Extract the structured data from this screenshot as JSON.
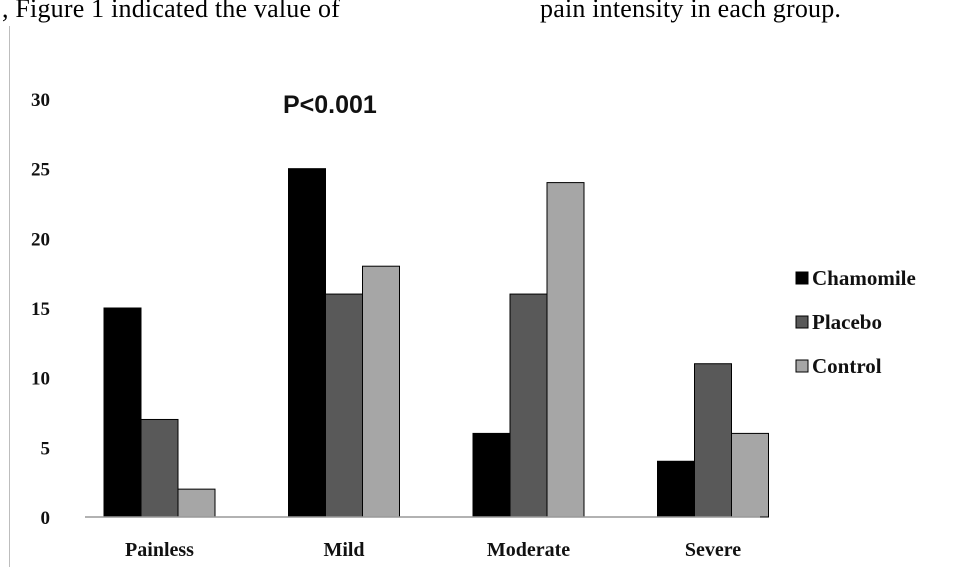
{
  "page_text": {
    "left": ", Figure 1 indicated the value of",
    "right": "pain intensity in each group."
  },
  "chart_data": {
    "type": "bar",
    "categories": [
      "Painless",
      "Mild",
      "Moderate",
      "Severe"
    ],
    "series": [
      {
        "name": "Chamomile",
        "values": [
          15,
          25,
          6,
          4
        ],
        "color": "#000000"
      },
      {
        "name": "Placebo",
        "values": [
          7,
          16,
          16,
          11
        ],
        "color": "#595959"
      },
      {
        "name": "Control",
        "values": [
          2,
          18,
          24,
          6
        ],
        "color": "#a6a6a6"
      }
    ],
    "yticks": [
      "0",
      "5",
      "10",
      "15",
      "20",
      "25",
      "30"
    ],
    "ylim": [
      0,
      30
    ],
    "annotation": "P<0.001",
    "legend_position": "right",
    "grid": false
  }
}
